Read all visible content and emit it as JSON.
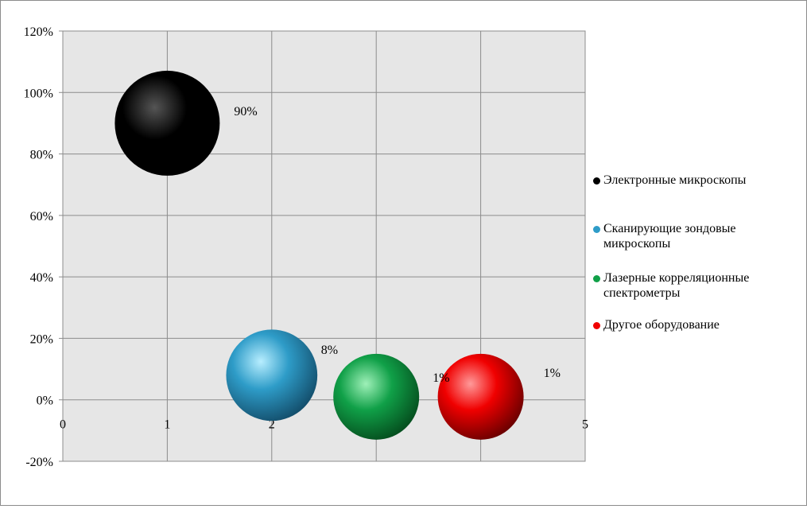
{
  "chart_data": {
    "type": "bubble",
    "xlim": [
      0,
      5
    ],
    "ylim": [
      -0.2,
      1.2
    ],
    "x_ticks": [
      "0",
      "1",
      "2",
      "3",
      "4",
      "5"
    ],
    "y_ticks": [
      "120%",
      "100%",
      "80%",
      "60%",
      "40%",
      "20%",
      "0%",
      "-20%"
    ],
    "grid": true,
    "legend_position": "right",
    "series": [
      {
        "name": "Электронные микроскопы",
        "x": 1,
        "y": 0.9,
        "size": 0.9,
        "label": "90%",
        "color": "#000000"
      },
      {
        "name": "Сканирующие зондовые микроскопы",
        "x": 2,
        "y": 0.08,
        "size": 0.08,
        "label": "8%",
        "color": "#2e9cc8"
      },
      {
        "name": "Лазерные корреляционные спектрометры",
        "x": 3,
        "y": 0.01,
        "size": 0.01,
        "label": "1%",
        "color": "#10a048"
      },
      {
        "name": "Другое оборудование",
        "x": 4,
        "y": 0.01,
        "size": 0.01,
        "label": "1%",
        "color": "#f00000"
      }
    ]
  }
}
